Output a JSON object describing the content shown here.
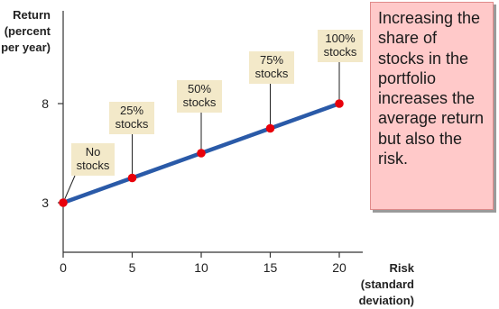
{
  "chart_data": {
    "type": "line",
    "x": [
      0,
      5,
      10,
      15,
      20
    ],
    "y": [
      3,
      4.25,
      5.5,
      6.75,
      8
    ],
    "point_labels": [
      [
        "No",
        "stocks"
      ],
      [
        "25%",
        "stocks"
      ],
      [
        "50%",
        "stocks"
      ],
      [
        "75%",
        "stocks"
      ],
      [
        "100%",
        "stocks"
      ]
    ],
    "xlabel": [
      "Risk",
      "(standard",
      "deviation)"
    ],
    "ylabel": [
      "Return",
      "(percent",
      "per year)"
    ],
    "x_ticks": [
      0,
      5,
      10,
      15,
      20
    ],
    "y_ticks": [
      3,
      8
    ],
    "xlim": [
      0,
      20
    ],
    "ylim": [
      0,
      10
    ],
    "grid": false,
    "legend": "none",
    "colors": {
      "line": "#2a5aa8",
      "points": "#e8000b",
      "label_box": "#f3e9c9",
      "callout_bg": "#ffc9c9"
    }
  },
  "callout": {
    "text": "Increasing the share of stocks in the portfolio increases the average return but also the risk."
  }
}
